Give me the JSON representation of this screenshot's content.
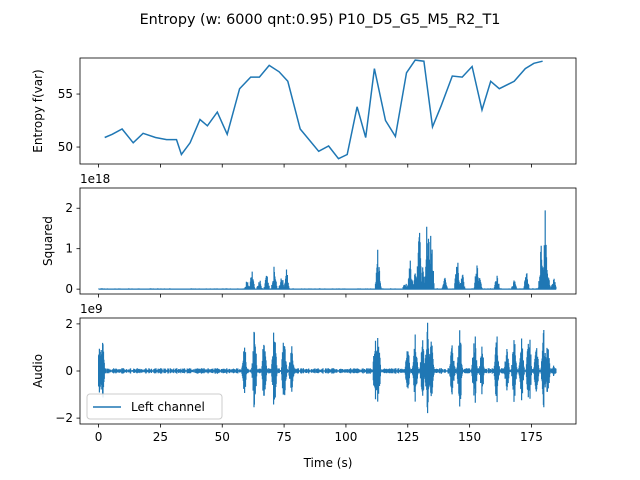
{
  "chart_data": {
    "title": "Entropy (w: 6000 qnt:0.95) P10_D5_G5_M5_R2_T1",
    "line_color": "#1f77b4",
    "xlim": [
      -7.5,
      193
    ],
    "xticks": [
      0,
      25,
      50,
      75,
      100,
      125,
      150,
      175
    ],
    "xlabel": "Time (s)",
    "panels": [
      {
        "type": "line",
        "name": "entropy",
        "ylabel": "Entropy f(var)",
        "ylim": [
          48.4,
          58.4
        ],
        "yticks": [
          50,
          55
        ],
        "offset_text": "",
        "x": [
          2.5,
          5.5,
          9.5,
          14,
          18,
          23,
          27.5,
          31.5,
          33.5,
          37,
          41,
          44,
          48,
          52,
          57,
          61.5,
          65,
          69,
          73,
          76.5,
          81.5,
          89,
          93,
          97,
          100.5,
          104.5,
          108,
          111.5,
          116,
          120,
          124.5,
          128,
          131.5,
          135,
          138.5,
          143,
          147,
          151,
          155,
          158.5,
          162,
          168,
          172.5,
          176,
          179.5
        ],
        "y": [
          50.9,
          51.2,
          51.7,
          50.4,
          51.3,
          50.9,
          50.7,
          50.7,
          49.3,
          50.4,
          52.6,
          52.0,
          53.3,
          51.2,
          55.5,
          56.6,
          56.6,
          57.7,
          57.1,
          56.2,
          51.7,
          49.6,
          50.1,
          48.9,
          49.3,
          53.8,
          50.9,
          57.4,
          52.5,
          51.0,
          57.0,
          58.2,
          58.1,
          51.9,
          53.9,
          56.7,
          56.6,
          57.6,
          53.5,
          56.2,
          55.5,
          56.2,
          57.4,
          57.9,
          58.1
        ],
        "x_shift_note": ""
      },
      {
        "type": "area",
        "name": "squared",
        "ylabel": "Squared",
        "ylim": [
          -0.12,
          2.5
        ],
        "yticks": [
          0,
          1,
          2
        ],
        "offset_text": "1e18",
        "events": [
          [
            0,
            0.04
          ],
          [
            1.2,
            0.03
          ],
          [
            60,
            0.25
          ],
          [
            62,
            0.5
          ],
          [
            65,
            0.3
          ],
          [
            68,
            0.45
          ],
          [
            71,
            0.6
          ],
          [
            74,
            0.4
          ],
          [
            76,
            0.55
          ],
          [
            113,
            1.2
          ],
          [
            124,
            0.2
          ],
          [
            126,
            0.8
          ],
          [
            128,
            0.5
          ],
          [
            129.5,
            1.9
          ],
          [
            131,
            0.6
          ],
          [
            133,
            2.4
          ],
          [
            134.5,
            1.7
          ],
          [
            140,
            0.3
          ],
          [
            145,
            0.9
          ],
          [
            147,
            0.5
          ],
          [
            153,
            0.8
          ],
          [
            154,
            0.3
          ],
          [
            161,
            0.45
          ],
          [
            168,
            0.25
          ],
          [
            173,
            0.5
          ],
          [
            179,
            1.2
          ],
          [
            180.5,
            2.2
          ],
          [
            181.5,
            0.5
          ],
          [
            184,
            0.3
          ]
        ]
      },
      {
        "type": "area",
        "name": "audio",
        "ylabel": "Audio",
        "ylim": [
          -2.25,
          2.25
        ],
        "yticks": [
          -2,
          0,
          2
        ],
        "offset_text": "1e9",
        "events": [
          [
            0,
            1.9
          ],
          [
            1.5,
            1.7
          ],
          [
            59,
            1.3
          ],
          [
            63,
            2.0
          ],
          [
            67,
            1.8
          ],
          [
            71,
            2.1
          ],
          [
            75,
            1.9
          ],
          [
            78,
            1.2
          ],
          [
            112,
            2.0
          ],
          [
            113,
            1.6
          ],
          [
            125,
            1.3
          ],
          [
            128,
            1.8
          ],
          [
            131,
            1.4
          ],
          [
            133,
            2.1
          ],
          [
            134.5,
            1.9
          ],
          [
            143,
            1.5
          ],
          [
            146,
            2.0
          ],
          [
            152,
            2.0
          ],
          [
            155,
            1.1
          ],
          [
            161,
            1.6
          ],
          [
            165,
            1.2
          ],
          [
            168,
            1.6
          ],
          [
            171,
            1.4
          ],
          [
            174,
            2.1
          ],
          [
            177,
            1.2
          ],
          [
            180,
            1.9
          ],
          [
            181.5,
            1.3
          ],
          [
            184,
            0.3
          ]
        ]
      }
    ],
    "legend": {
      "label": "Left channel",
      "placement": "lower-left"
    }
  }
}
